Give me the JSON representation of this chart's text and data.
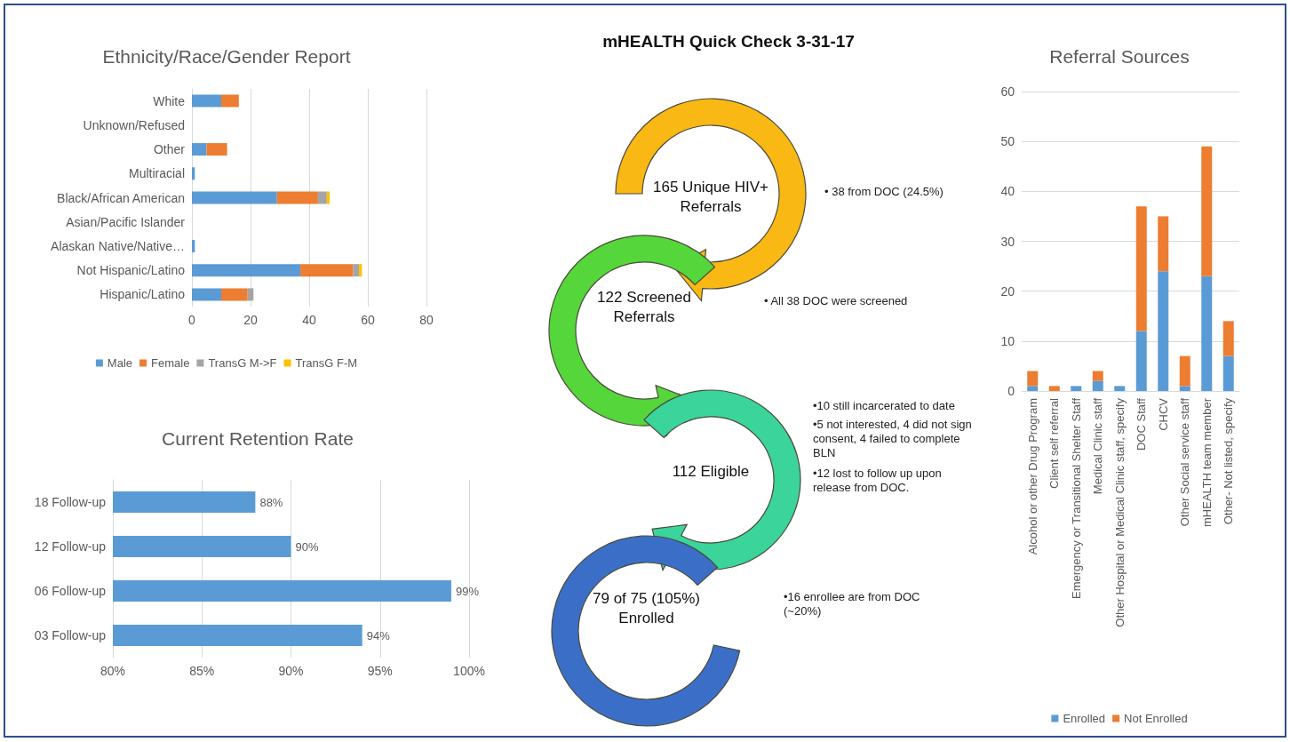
{
  "chart_data": [
    {
      "type": "bar",
      "title": "Ethnicity/Race/Gender Report",
      "orientation": "horizontal",
      "stacked": true,
      "categories": [
        "White",
        "Unknown/Refused",
        "Other",
        "Multiracial",
        "Black/African American",
        "Asian/Pacific Islander",
        "Alaskan Native/Native…",
        "Not Hispanic/Latino",
        "Hispanic/Latino"
      ],
      "series": [
        {
          "name": "Male",
          "color": "#5b9bd5",
          "values": [
            10,
            0,
            5,
            1,
            29,
            0,
            1,
            37,
            10
          ]
        },
        {
          "name": "Female",
          "color": "#ed7d31",
          "values": [
            6,
            0,
            7,
            0,
            14,
            0,
            0,
            18,
            9
          ]
        },
        {
          "name": "TransG M->F",
          "color": "#a5a5a5",
          "values": [
            0,
            0,
            0,
            0,
            3,
            0,
            0,
            2,
            2
          ]
        },
        {
          "name": "TransG F-M",
          "color": "#ffc000",
          "values": [
            0,
            0,
            0,
            0,
            1,
            0,
            0,
            1,
            0
          ]
        }
      ],
      "xlim": [
        0,
        80
      ],
      "xticks": [
        0,
        20,
        40,
        60,
        80
      ],
      "grid": "x",
      "legend": "bottom"
    },
    {
      "type": "bar",
      "title": "Current Retention Rate",
      "orientation": "horizontal",
      "categories": [
        "18 Follow-up",
        "12 Follow-up",
        "06 Follow-up",
        "03 Follow-up"
      ],
      "values": [
        88,
        90,
        99,
        94
      ],
      "color": "#5b9bd5",
      "value_labels": [
        "88%",
        "90%",
        "99%",
        "94%"
      ],
      "xlim": [
        80,
        100
      ],
      "xticks": [
        {
          "value": 80,
          "label": "80%"
        },
        {
          "value": 85,
          "label": "85%"
        },
        {
          "value": 90,
          "label": "90%"
        },
        {
          "value": 95,
          "label": "95%"
        },
        {
          "value": 100,
          "label": "100%"
        }
      ],
      "grid": "x"
    },
    {
      "type": "other",
      "title": "mHEALTH Quick Check 3-31-17",
      "annotations": [
        "165 Unique HIV+ Referrals",
        "122 Screened Referrals",
        "112 Eligible",
        "79 of 75 (105%) Enrolled",
        "• 38 from DOC (24.5%)",
        "• All 38 DOC were screened",
        "•10 still incarcerated to date",
        "•5 not interested, 4 did not sign consent, 4 failed to complete BLN",
        "•12 lost to follow up upon release from DOC.",
        "•16 enrollee are from DOC (~20%)"
      ]
    },
    {
      "type": "bar",
      "title": "Referral Sources",
      "stacked": true,
      "categories": [
        "Alcohol or other Drug Program",
        "Client self referral",
        "Emergency or Transitional Shelter Staff",
        "Medical Clinic staff",
        "Other Hospital or Medical Clinic staff, specify",
        "DOC Staff",
        "CHCV",
        "Other Social service staff",
        "mHEALTH team member",
        "Other- Not listed, specify"
      ],
      "series": [
        {
          "name": "Enrolled",
          "color": "#5b9bd5",
          "values": [
            1,
            0,
            1,
            2,
            1,
            12,
            24,
            1,
            23,
            7
          ]
        },
        {
          "name": "Not Enrolled",
          "color": "#ed7d31",
          "values": [
            3,
            1,
            0,
            2,
            0,
            25,
            11,
            6,
            26,
            7
          ]
        }
      ],
      "ylim": [
        0,
        60
      ],
      "yticks": [
        0,
        10,
        20,
        30,
        40,
        50,
        60
      ],
      "grid": "y",
      "legend": "bottom"
    }
  ]
}
